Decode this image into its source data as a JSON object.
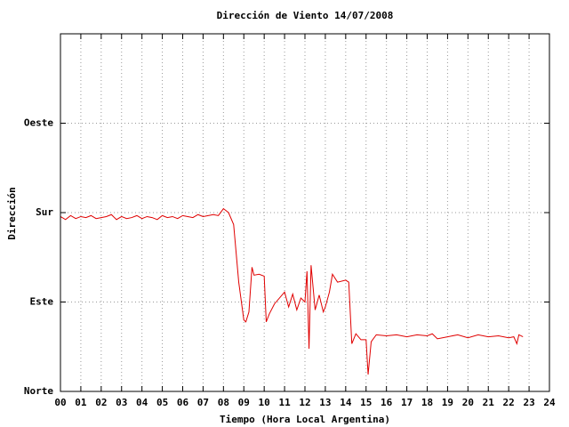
{
  "chart_data": {
    "type": "line",
    "title": "Dirección de Viento 14/07/2008",
    "x_label": "Tiempo (Hora Local Argentina)",
    "y_label": "Dirección",
    "xlim": [
      0,
      24
    ],
    "ylim": [
      0,
      360
    ],
    "xticks": [
      {
        "value": 0,
        "label": "00"
      },
      {
        "value": 1,
        "label": "01"
      },
      {
        "value": 2,
        "label": "02"
      },
      {
        "value": 3,
        "label": "03"
      },
      {
        "value": 4,
        "label": "04"
      },
      {
        "value": 5,
        "label": "05"
      },
      {
        "value": 6,
        "label": "06"
      },
      {
        "value": 7,
        "label": "07"
      },
      {
        "value": 8,
        "label": "08"
      },
      {
        "value": 9,
        "label": "09"
      },
      10,
      11,
      12,
      13,
      14,
      15,
      16,
      17,
      18,
      19,
      20,
      21,
      22,
      23,
      24
    ],
    "yticks": [
      {
        "value": 0,
        "label": "Norte"
      },
      {
        "value": 90,
        "label": "Este"
      },
      {
        "value": 180,
        "label": "Sur"
      },
      {
        "value": 270,
        "label": "Oeste"
      }
    ],
    "grid": true,
    "series": [
      {
        "color": "#e00000",
        "x": [
          0,
          0.25,
          0.5,
          0.75,
          1,
          1.25,
          1.5,
          1.75,
          2,
          2.25,
          2.5,
          2.75,
          3,
          3.25,
          3.5,
          3.75,
          4,
          4.25,
          4.5,
          4.75,
          5,
          5.25,
          5.5,
          5.75,
          6,
          6.25,
          6.5,
          6.75,
          7,
          7.25,
          7.5,
          7.75,
          8,
          8.25,
          8.5,
          8.75,
          9,
          9.1,
          9.25,
          9.4,
          9.5,
          9.75,
          10,
          10.1,
          10.25,
          10.5,
          11,
          11.2,
          11.4,
          11.6,
          11.8,
          12,
          12.1,
          12.2,
          12.3,
          12.5,
          12.7,
          12.9,
          13,
          13.2,
          13.35,
          13.6,
          14,
          14.15,
          14.3,
          14.5,
          14.75,
          15,
          15.1,
          15.25,
          15.5,
          16,
          16.5,
          17,
          17.5,
          18,
          18.25,
          18.5,
          19,
          19.5,
          20,
          20.5,
          21,
          21.5,
          22,
          22.25,
          22.4,
          22.5,
          22.7
        ],
        "values": [
          176,
          173,
          177,
          174,
          176,
          175,
          177,
          174,
          175,
          176,
          178,
          173,
          176,
          174,
          175,
          177,
          174,
          176,
          175,
          173,
          177,
          175,
          176,
          174,
          177,
          176,
          175,
          178,
          176,
          177,
          178,
          177,
          184,
          180,
          168,
          110,
          72,
          70,
          80,
          125,
          117,
          118,
          116,
          70,
          78,
          88,
          100,
          85,
          98,
          82,
          94,
          90,
          121,
          43,
          127,
          82,
          97,
          80,
          85,
          100,
          118,
          110,
          112,
          110,
          48,
          58,
          52,
          52,
          17,
          50,
          57,
          56,
          57,
          55,
          57,
          56,
          58,
          53,
          55,
          57,
          54,
          57,
          55,
          56,
          54,
          55,
          48,
          57,
          55
        ]
      }
    ]
  }
}
